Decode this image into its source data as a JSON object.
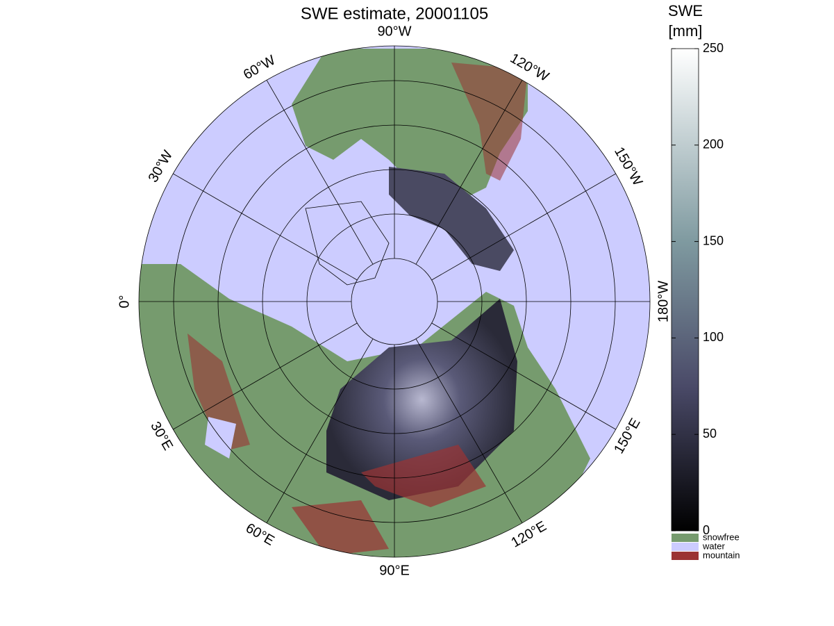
{
  "map": {
    "title": "SWE estimate, 20001105",
    "meridian_labels": [
      "90°W",
      "120°W",
      "150°W",
      "180°W",
      "150°E",
      "120°E",
      "90°E",
      "60°E",
      "30°E",
      "0°",
      "30°W",
      "60°W"
    ],
    "colorbar": {
      "title": [
        "SWE",
        "[mm]"
      ],
      "lim": [
        0,
        250
      ],
      "ticks": [
        0,
        50,
        100,
        150,
        200,
        250
      ]
    },
    "legend": [
      {
        "name": "snowfree",
        "color": "#769b6e"
      },
      {
        "name": "water",
        "color": "#ccccff"
      },
      {
        "name": "mountain",
        "color": "#9b3333"
      }
    ]
  }
}
